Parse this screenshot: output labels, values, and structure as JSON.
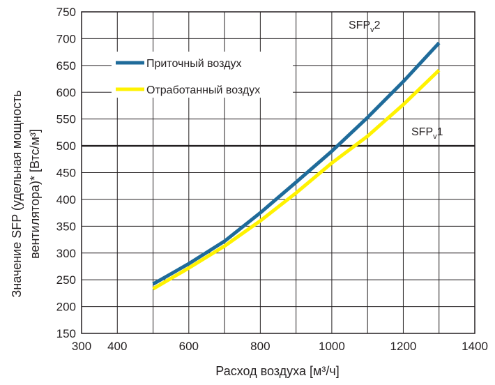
{
  "chart_data": {
    "type": "line",
    "xlabel": "Расход воздуха [м³/ч]",
    "ylabel_line1": "Значение SFP (удельная мощность",
    "ylabel_line2": "вентилятора)* [Втс/м³]",
    "xlim": [
      300,
      1400
    ],
    "ylim": [
      150,
      750
    ],
    "x_ticks": [
      300,
      400,
      600,
      800,
      1000,
      1200,
      1400
    ],
    "x_tick_labels": [
      "300",
      "400",
      "600",
      "800",
      "1000",
      "1200",
      "1400"
    ],
    "y_ticks": [
      150,
      200,
      250,
      300,
      350,
      400,
      450,
      500,
      550,
      600,
      650,
      700,
      750
    ],
    "y_tick_labels": [
      "150",
      "200",
      "250",
      "300",
      "350",
      "400",
      "450",
      "500",
      "550",
      "600",
      "650",
      "700",
      "750"
    ],
    "x_grid_step": 100,
    "grid": true,
    "legend_position": "top-left",
    "series": [
      {
        "name": "Приточный воздух",
        "color": "#1f6b9a",
        "x": [
          500,
          600,
          700,
          800,
          900,
          1000,
          1100,
          1200,
          1300
        ],
        "y": [
          242,
          280,
          322,
          375,
          432,
          490,
          553,
          620,
          692
        ]
      },
      {
        "name": "Отработанный воздух",
        "color": "#fff200",
        "x": [
          500,
          600,
          700,
          800,
          900,
          1000,
          1100,
          1200,
          1300
        ],
        "y": [
          233,
          272,
          313,
          360,
          412,
          468,
          518,
          577,
          641
        ]
      }
    ],
    "reference_lines": [
      {
        "label": "SFP",
        "subscript": "v",
        "suffix": "1",
        "y": 500
      },
      {
        "label": "SFP",
        "subscript": "v",
        "suffix": "2",
        "y": 750
      }
    ]
  }
}
